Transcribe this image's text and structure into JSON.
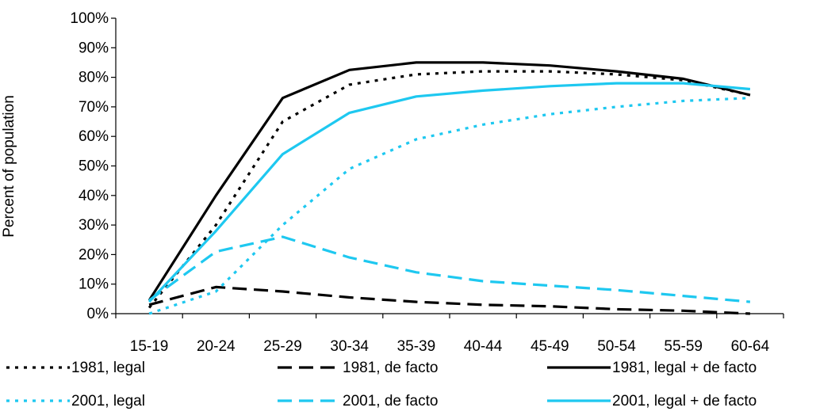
{
  "chart_data": {
    "type": "line",
    "title": "",
    "xlabel": "",
    "ylabel": "Percent of population",
    "ylim": [
      0,
      100
    ],
    "y_ticks": [
      "0%",
      "10%",
      "20%",
      "30%",
      "40%",
      "50%",
      "60%",
      "70%",
      "80%",
      "90%",
      "100%"
    ],
    "grid": false,
    "legend_position": "bottom",
    "categories": [
      "15-19",
      "20-24",
      "25-29",
      "30-34",
      "35-39",
      "40-44",
      "45-49",
      "50-54",
      "55-59",
      "60-64"
    ],
    "series": [
      {
        "name": "1981, legal",
        "color": "#000000",
        "dash": "dotted",
        "values": [
          2,
          30,
          65,
          77.5,
          81,
          82,
          82,
          81,
          79,
          74
        ]
      },
      {
        "name": "1981, de facto",
        "color": "#000000",
        "dash": "dashed",
        "values": [
          3,
          9,
          7.5,
          5.5,
          4,
          3,
          2.5,
          1.5,
          1,
          0
        ]
      },
      {
        "name": "1981, legal + de facto",
        "color": "#000000",
        "dash": "solid",
        "values": [
          4.5,
          40,
          73,
          82.5,
          85,
          85,
          84,
          82,
          79.5,
          74
        ]
      },
      {
        "name": "2001, legal",
        "color": "#1ec8f0",
        "dash": "dotted",
        "values": [
          0,
          7.5,
          30,
          49,
          59,
          64,
          67.5,
          70,
          72,
          73
        ]
      },
      {
        "name": "2001, de facto",
        "color": "#1ec8f0",
        "dash": "dashed",
        "values": [
          4.5,
          21,
          26,
          19,
          14,
          11,
          9.5,
          8,
          6,
          4
        ]
      },
      {
        "name": "2001, legal + de facto",
        "color": "#1ec8f0",
        "dash": "solid",
        "values": [
          4,
          28,
          54,
          68,
          73.5,
          75.5,
          77,
          78,
          78,
          76
        ]
      }
    ]
  }
}
